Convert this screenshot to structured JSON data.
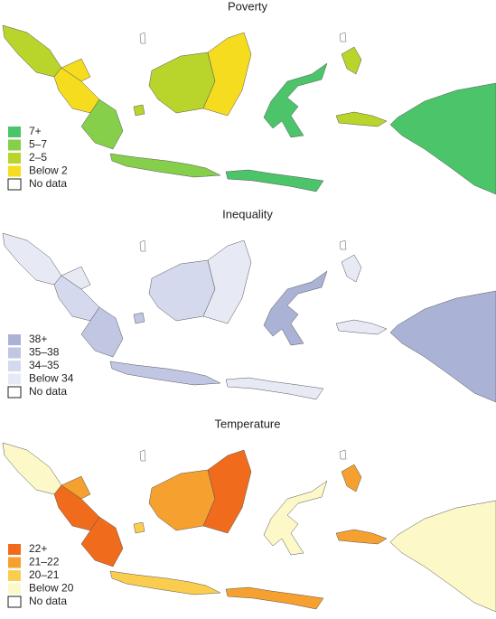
{
  "panels": [
    {
      "title": "Poverty",
      "legend": [
        {
          "label": "7+",
          "color": "#4cc46a"
        },
        {
          "label": "5–7",
          "color": "#86cf4b"
        },
        {
          "label": "2–5",
          "color": "#b9d42b"
        },
        {
          "label": "Below 2",
          "color": "#f5dc1f"
        },
        {
          "label": "No data",
          "color": "#ffffff"
        }
      ]
    },
    {
      "title": "Inequality",
      "legend": [
        {
          "label": "38+",
          "color": "#aab2d6"
        },
        {
          "label": "35–38",
          "color": "#c1c7e3"
        },
        {
          "label": "34–35",
          "color": "#d5d9ee"
        },
        {
          "label": "Below 34",
          "color": "#e7e9f5"
        },
        {
          "label": "No data",
          "color": "#ffffff"
        }
      ]
    },
    {
      "title": "Temperature",
      "legend": [
        {
          "label": "22+",
          "color": "#f06c1c"
        },
        {
          "label": "21–22",
          "color": "#f5a02f"
        },
        {
          "label": "20–21",
          "color": "#fbcd4f"
        },
        {
          "label": "Below 20",
          "color": "#fdf8c7"
        },
        {
          "label": "No data",
          "color": "#ffffff"
        }
      ]
    }
  ]
}
